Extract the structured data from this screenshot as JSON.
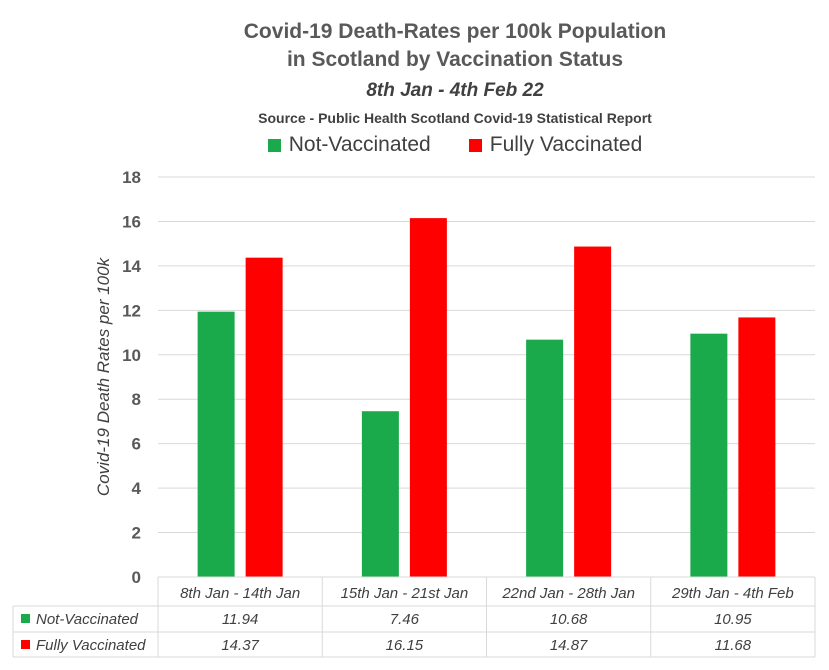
{
  "chart_data": {
    "type": "bar",
    "title": "Covid-19 Death-Rates per 100k Population",
    "title_line2": "in Scotland by Vaccination Status",
    "subtitle": "8th Jan - 4th Feb 22",
    "source": "Source - Public Health Scotland Covid-19 Statistical Report",
    "ylabel": "Covid-19 Death Rates per 100k",
    "xlabel": "",
    "ylim": [
      0,
      18
    ],
    "yticks": [
      "0",
      "2",
      "4",
      "6",
      "8",
      "10",
      "12",
      "14",
      "16",
      "18"
    ],
    "grid": true,
    "legend_position": "top",
    "categories": [
      "8th Jan - 14th Jan",
      "15th Jan - 21st Jan",
      "22nd Jan - 28th Jan",
      "29th Jan - 4th Feb"
    ],
    "series": [
      {
        "name": "Not-Vaccinated",
        "color": "#1aaa4b",
        "values": [
          11.94,
          7.46,
          10.68,
          10.95
        ],
        "labels": [
          "11.94",
          "7.46",
          "10.68",
          "10.95"
        ]
      },
      {
        "name": "Fully Vaccinated",
        "color": "#ff0000",
        "values": [
          14.37,
          16.15,
          14.87,
          11.68
        ],
        "labels": [
          "14.37",
          "16.15",
          "14.87",
          "11.68"
        ]
      }
    ]
  }
}
